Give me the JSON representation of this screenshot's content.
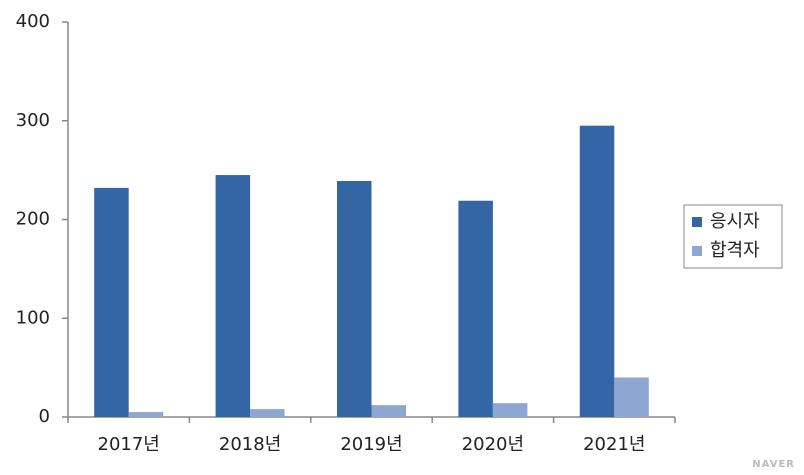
{
  "chart_data": {
    "type": "bar",
    "categories": [
      "2017년",
      "2018년",
      "2019년",
      "2020년",
      "2021년"
    ],
    "series": [
      {
        "name": "응시자",
        "color": "#3465a4",
        "values": [
          232,
          245,
          239,
          219,
          295
        ]
      },
      {
        "name": "합격자",
        "color": "#8ea6d2",
        "values": [
          5,
          8,
          12,
          14,
          40
        ]
      }
    ],
    "ylim": [
      0,
      400
    ],
    "yticks": [
      0,
      100,
      200,
      300,
      400
    ],
    "grid": false,
    "legend": "right"
  },
  "watermark": "NAVER"
}
